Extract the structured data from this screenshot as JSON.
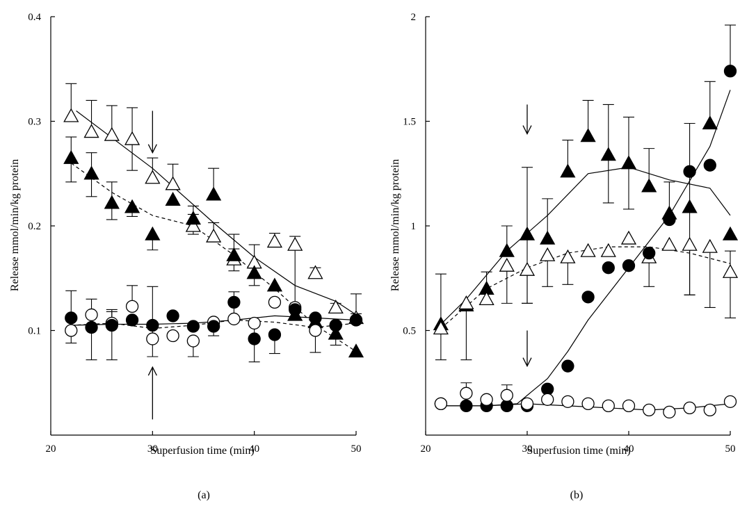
{
  "chart_data": [
    {
      "type": "scatter",
      "panel_label": "(a)",
      "xlabel": "Superfusion time (min)",
      "ylabel": "Release mmol/min/kg protein",
      "xlim": [
        20,
        50
      ],
      "ylim": [
        0,
        0.4
      ],
      "xticks": [
        20,
        30,
        40,
        50
      ],
      "yticks": [
        0.1,
        0.2,
        0.3,
        0.4
      ],
      "ytick_labels": [
        "0.1",
        "0.2",
        "0.3",
        "0.4"
      ],
      "grid": false,
      "arrows": [
        {
          "x": 30,
          "y_from": 0.31,
          "y_to": 0.27
        },
        {
          "x": 30,
          "y_from": 0.015,
          "y_to": 0.065
        }
      ],
      "series": [
        {
          "marker": "triangle-open",
          "x": [
            22,
            24,
            26,
            28,
            30,
            32,
            34,
            36,
            38,
            40,
            42,
            44,
            46,
            48,
            50
          ],
          "y": [
            0.305,
            0.29,
            0.287,
            0.283,
            0.246,
            0.24,
            0.2,
            0.19,
            0.168,
            0.165,
            0.185,
            0.182,
            0.155,
            0.122,
            0.112
          ],
          "err_up": [
            0.031,
            0.03,
            0.028,
            0.03,
            0.019,
            0.019,
            0.011,
            0.013,
            0.01,
            0.017,
            0.008,
            0.008,
            0.005,
            0.004,
            0.004
          ],
          "err_down": [
            0.0,
            0.0,
            0.0,
            0.03,
            0.0,
            0.0,
            0.0,
            0.0,
            0.0,
            0.0,
            0.0,
            0.058,
            0.0,
            0.0,
            0.0
          ],
          "fit": {
            "style": "solid",
            "x": [
              22.5,
              30,
              36,
              40,
              44,
              48,
              50
            ],
            "y": [
              0.31,
              0.255,
              0.203,
              0.17,
              0.143,
              0.128,
              0.115
            ]
          }
        },
        {
          "marker": "triangle-filled",
          "x": [
            22,
            24,
            26,
            28,
            30,
            32,
            34,
            36,
            38,
            40,
            42,
            44,
            46,
            48,
            50
          ],
          "y": [
            0.265,
            0.25,
            0.222,
            0.218,
            0.192,
            0.225,
            0.207,
            0.23,
            0.172,
            0.155,
            0.143,
            0.115,
            0.108,
            0.097,
            0.08
          ],
          "err_up": [
            0.02,
            0.02,
            0.02,
            0.0,
            0.0,
            0.0,
            0.012,
            0.025,
            0.02,
            0.0,
            0.0,
            0.0,
            0.0,
            0.0,
            0.0
          ],
          "err_down": [
            0.023,
            0.022,
            0.016,
            0.009,
            0.015,
            0.0,
            0.015,
            0.0,
            0.015,
            0.012,
            0.0,
            0.0,
            0.0,
            0.0,
            0.0
          ],
          "fit": {
            "style": "dashed",
            "x": [
              22,
              26,
              30,
              34,
              38,
              42,
              46,
              50
            ],
            "y": [
              0.26,
              0.232,
              0.21,
              0.2,
              0.172,
              0.14,
              0.105,
              0.08
            ]
          }
        },
        {
          "marker": "circle-open",
          "x": [
            22,
            24,
            26,
            28,
            30,
            32,
            34,
            36,
            38,
            40,
            42,
            44,
            46,
            48,
            50
          ],
          "y": [
            0.1,
            0.115,
            0.107,
            0.123,
            0.092,
            0.095,
            0.09,
            0.108,
            0.111,
            0.107,
            0.127,
            0.122,
            0.1,
            0.105,
            0.11
          ],
          "err_up": [
            0.0,
            0.0,
            0.013,
            0.02,
            0.0,
            0.0,
            0.0,
            0.0,
            0.026,
            0.0,
            0.0,
            0.0,
            0.0,
            0.0,
            0.0
          ],
          "err_down": [
            0.012,
            0.0,
            0.0,
            0.0,
            0.0,
            0.0,
            0.015,
            0.0,
            0.0,
            0.037,
            0.0,
            0.012,
            0.0,
            0.0,
            0.0
          ],
          "fit": {
            "style": "dashed",
            "x": [
              22,
              26,
              30,
              34,
              38,
              42,
              46,
              50
            ],
            "y": [
              0.105,
              0.107,
              0.102,
              0.105,
              0.11,
              0.108,
              0.103,
              0.107
            ]
          }
        },
        {
          "marker": "circle-filled",
          "x": [
            22,
            24,
            26,
            28,
            30,
            32,
            34,
            36,
            38,
            40,
            42,
            44,
            46,
            48,
            50
          ],
          "y": [
            0.112,
            0.103,
            0.105,
            0.11,
            0.105,
            0.114,
            0.104,
            0.104,
            0.127,
            0.092,
            0.096,
            0.12,
            0.112,
            0.105,
            0.11
          ],
          "err_up": [
            0.026,
            0.027,
            0.013,
            0.0,
            0.037,
            0.0,
            0.0,
            0.0,
            0.0,
            0.0,
            0.0,
            0.0,
            0.0,
            0.0,
            0.025
          ],
          "err_down": [
            0.0,
            0.031,
            0.033,
            0.0,
            0.03,
            0.0,
            0.0,
            0.009,
            0.0,
            0.0,
            0.018,
            0.0,
            0.033,
            0.019,
            0.0
          ],
          "fit": {
            "style": "solid",
            "x": [
              22,
              26,
              30,
              34,
              38,
              42,
              46,
              50
            ],
            "y": [
              0.105,
              0.106,
              0.106,
              0.107,
              0.11,
              0.114,
              0.112,
              0.11
            ]
          }
        }
      ]
    },
    {
      "type": "scatter",
      "panel_label": "(b)",
      "xlabel": "Superfusion time (min)",
      "ylabel": "Release mmol/min/kg protein",
      "xlim": [
        20,
        50
      ],
      "ylim": [
        0,
        2
      ],
      "xticks": [
        20,
        30,
        40,
        50
      ],
      "yticks": [
        0.5,
        1,
        1.5,
        2
      ],
      "ytick_labels": [
        "0.5",
        "1",
        "1.5",
        "2"
      ],
      "grid": false,
      "arrows": [
        {
          "x": 30,
          "y_from": 1.58,
          "y_to": 1.44
        },
        {
          "x": 30,
          "y_from": 0.5,
          "y_to": 0.33
        }
      ],
      "series": [
        {
          "marker": "triangle-filled",
          "x": [
            21.5,
            24,
            26,
            28,
            30,
            32,
            34,
            36,
            38,
            40,
            42,
            44,
            46,
            48,
            50
          ],
          "y": [
            0.53,
            0.62,
            0.7,
            0.88,
            0.96,
            0.94,
            1.26,
            1.43,
            1.34,
            1.3,
            1.19,
            1.06,
            1.09,
            1.49,
            0.96
          ],
          "err_up": [
            0.24,
            0.0,
            0.08,
            0.12,
            0.32,
            0.19,
            0.15,
            0.17,
            0.24,
            0.22,
            0.18,
            0.15,
            0.4,
            0.2,
            0.0
          ],
          "err_down": [
            0.17,
            0.26,
            0.0,
            0.0,
            0.33,
            0.0,
            0.0,
            0.0,
            0.23,
            0.22,
            0.0,
            0.0,
            0.42,
            0.0,
            0.0
          ],
          "fit": {
            "style": "solid",
            "x": [
              21.5,
              24,
              28,
              32,
              36,
              40,
              44,
              48,
              50
            ],
            "y": [
              0.53,
              0.65,
              0.88,
              1.05,
              1.25,
              1.28,
              1.22,
              1.18,
              1.05
            ]
          }
        },
        {
          "marker": "triangle-open",
          "x": [
            21.5,
            24,
            26,
            28,
            30,
            32,
            34,
            36,
            38,
            40,
            42,
            44,
            46,
            48,
            50
          ],
          "y": [
            0.51,
            0.63,
            0.65,
            0.81,
            0.79,
            0.86,
            0.85,
            0.88,
            0.88,
            0.94,
            0.85,
            0.91,
            0.91,
            0.9,
            0.78
          ],
          "err_up": [
            0.0,
            0.0,
            0.0,
            0.0,
            0.0,
            0.0,
            0.0,
            0.0,
            0.0,
            0.0,
            0.0,
            0.0,
            0.0,
            0.0,
            0.1
          ],
          "err_down": [
            0.0,
            0.0,
            0.0,
            0.18,
            0.16,
            0.15,
            0.13,
            0.0,
            0.0,
            0.0,
            0.14,
            0.0,
            0.24,
            0.29,
            0.22
          ],
          "fit": {
            "style": "dashed",
            "x": [
              21.5,
              26,
              30,
              34,
              38,
              42,
              46,
              50
            ],
            "y": [
              0.51,
              0.7,
              0.8,
              0.87,
              0.9,
              0.9,
              0.87,
              0.82
            ]
          }
        },
        {
          "marker": "circle-filled",
          "x": [
            21.5,
            24,
            26,
            28,
            30,
            32,
            34,
            36,
            38,
            40,
            42,
            44,
            46,
            48,
            50
          ],
          "y": [
            0.15,
            0.14,
            0.14,
            0.14,
            0.14,
            0.22,
            0.33,
            0.66,
            0.8,
            0.81,
            0.87,
            1.03,
            1.26,
            1.29,
            1.74
          ],
          "err_up": [
            0.0,
            0.0,
            0.0,
            0.0,
            0.0,
            0.0,
            0.0,
            0.0,
            0.0,
            0.0,
            0.0,
            0.0,
            0.0,
            0.0,
            0.22
          ],
          "err_down": [
            0.0,
            0.0,
            0.0,
            0.0,
            0.0,
            0.0,
            0.0,
            0.0,
            0.0,
            0.0,
            0.0,
            0.0,
            0.0,
            0.0,
            0.0
          ],
          "fit": {
            "style": "solid",
            "x": [
              21.5,
              26,
              29,
              32,
              34,
              36,
              40,
              44,
              48,
              50
            ],
            "y": [
              0.14,
              0.14,
              0.15,
              0.27,
              0.4,
              0.55,
              0.8,
              1.05,
              1.38,
              1.65
            ]
          }
        },
        {
          "marker": "circle-open",
          "x": [
            21.5,
            24,
            26,
            28,
            30,
            32,
            34,
            36,
            38,
            40,
            42,
            44,
            46,
            48,
            50
          ],
          "y": [
            0.15,
            0.2,
            0.17,
            0.19,
            0.15,
            0.17,
            0.16,
            0.15,
            0.14,
            0.14,
            0.12,
            0.11,
            0.13,
            0.12,
            0.16
          ],
          "err_up": [
            0.0,
            0.05,
            0.0,
            0.05,
            0.0,
            0.0,
            0.0,
            0.0,
            0.0,
            0.0,
            0.0,
            0.0,
            0.0,
            0.0,
            0.0
          ],
          "err_down": [
            0.0,
            0.0,
            0.0,
            0.0,
            0.0,
            0.0,
            0.0,
            0.0,
            0.0,
            0.0,
            0.0,
            0.0,
            0.0,
            0.0,
            0.0
          ],
          "fit": {
            "style": "solid",
            "x": [
              21.5,
              26,
              30,
              34,
              38,
              42,
              46,
              50
            ],
            "y": [
              0.14,
              0.14,
              0.15,
              0.14,
              0.13,
              0.12,
              0.13,
              0.15
            ]
          }
        }
      ]
    }
  ]
}
